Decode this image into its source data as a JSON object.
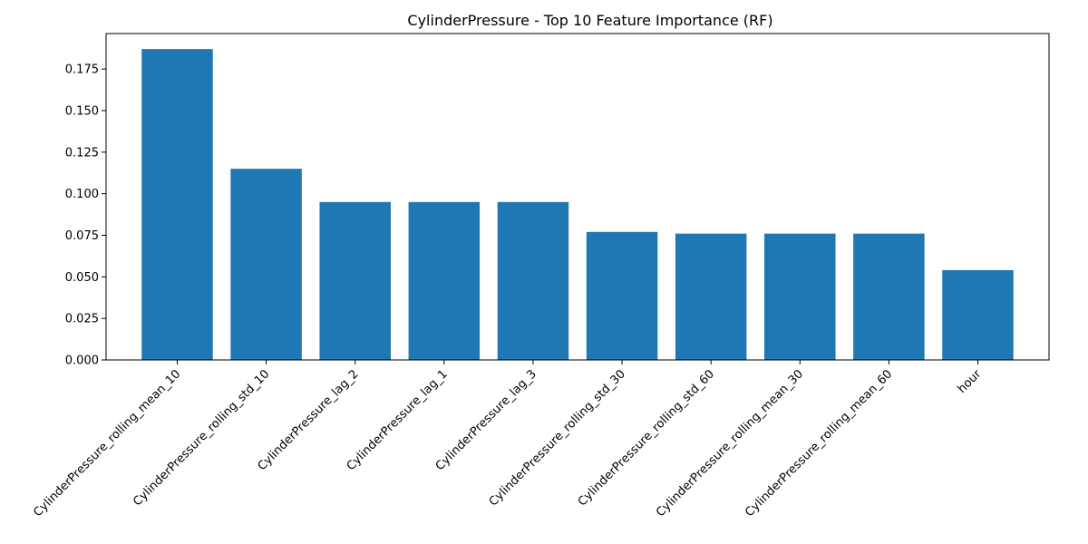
{
  "chart_data": {
    "type": "bar",
    "title": "CylinderPressure - Top 10 Feature Importance (RF)",
    "xlabel": "",
    "ylabel": "",
    "categories": [
      "CylinderPressure_rolling_mean_10",
      "CylinderPressure_rolling_std_10",
      "CylinderPressure_lag_2",
      "CylinderPressure_lag_1",
      "CylinderPressure_lag_3",
      "CylinderPressure_rolling_std_30",
      "CylinderPressure_rolling_std_60",
      "CylinderPressure_rolling_mean_30",
      "CylinderPressure_rolling_mean_60",
      "hour"
    ],
    "values": [
      0.187,
      0.115,
      0.095,
      0.095,
      0.095,
      0.077,
      0.076,
      0.076,
      0.076,
      0.054
    ],
    "ylim": [
      0,
      0.19635
    ],
    "yticks": [
      0.0,
      0.025,
      0.05,
      0.075,
      0.1,
      0.125,
      0.15,
      0.175
    ],
    "ytick_labels": [
      "0.000",
      "0.025",
      "0.050",
      "0.075",
      "0.100",
      "0.125",
      "0.150",
      "0.175"
    ],
    "grid": false,
    "bar_color": "#1f77b4"
  }
}
